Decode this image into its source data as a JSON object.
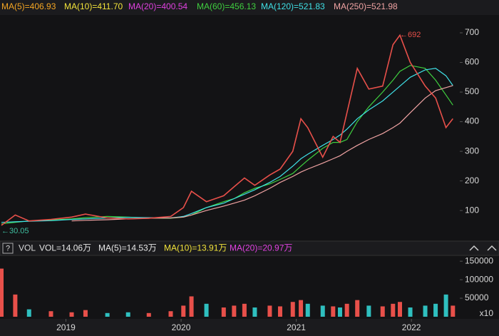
{
  "chart_data": [
    {
      "type": "line",
      "legend": [
        {
          "label": "MA(5)=406.93",
          "color": "#f5a623"
        },
        {
          "label": "MA(10)=411.70",
          "color": "#f2e33a"
        },
        {
          "label": "MA(20)=400.54",
          "color": "#e041e0"
        },
        {
          "label": "MA(60)=456.13",
          "color": "#3fcf3f"
        },
        {
          "label": "MA(120)=521.83",
          "color": "#3fe0e6"
        },
        {
          "label": "MA(250)=521.98",
          "color": "#f0a3a3"
        }
      ],
      "x": [
        2018.44,
        2018.56,
        2018.68,
        2018.87,
        2019.05,
        2019.17,
        2019.36,
        2019.54,
        2019.72,
        2019.91,
        2020.02,
        2020.09,
        2020.22,
        2020.37,
        2020.46,
        2020.55,
        2020.64,
        2020.77,
        2020.86,
        2020.97,
        2021.04,
        2021.1,
        2021.23,
        2021.32,
        2021.38,
        2021.44,
        2021.53,
        2021.63,
        2021.75,
        2021.84,
        2021.9,
        2021.99,
        2022.12,
        2022.21,
        2022.3,
        2022.36
      ],
      "values": [
        50,
        85,
        65,
        70,
        78,
        88,
        75,
        72,
        74,
        80,
        110,
        165,
        130,
        150,
        180,
        210,
        185,
        220,
        240,
        300,
        410,
        380,
        280,
        350,
        330,
        430,
        580,
        510,
        520,
        660,
        692,
        600,
        520,
        480,
        380,
        410
      ],
      "color": "#e8504a",
      "series": [
        {
          "color": "#3fcf3f",
          "values": [
            55,
            60,
            65,
            68,
            72,
            76,
            80,
            78,
            74,
            74,
            78,
            85,
            110,
            130,
            140,
            160,
            175,
            190,
            205,
            225,
            250,
            270,
            310,
            330,
            330,
            340,
            400,
            450,
            500,
            540,
            570,
            590,
            580,
            540,
            490,
            456
          ]
        },
        {
          "color": "#3fe0e6",
          "values": [
            60,
            62,
            64,
            66,
            70,
            72,
            75,
            77,
            76,
            75,
            80,
            90,
            110,
            125,
            140,
            155,
            170,
            195,
            215,
            250,
            275,
            290,
            320,
            340,
            355,
            375,
            410,
            440,
            470,
            500,
            520,
            550,
            575,
            580,
            555,
            522
          ]
        },
        {
          "color": "#f0a3a3",
          "values": [
            null,
            null,
            null,
            null,
            65,
            67,
            69,
            72,
            74,
            75,
            78,
            85,
            100,
            115,
            125,
            135,
            150,
            175,
            195,
            215,
            230,
            240,
            260,
            275,
            285,
            300,
            320,
            340,
            360,
            380,
            395,
            430,
            480,
            505,
            515,
            522
          ]
        }
      ],
      "xlim": [
        2018.44,
        2022.42
      ],
      "ylim": [
        4,
        753
      ],
      "yticks": [
        100,
        200,
        300,
        400,
        500,
        600,
        700
      ],
      "annotations": [
        {
          "text": "←692",
          "x": 2021.9,
          "y": 692,
          "color": "#e8504a"
        },
        {
          "text": "←30.05",
          "x": 2018.44,
          "y": 30.05,
          "color": "#3fbfa0"
        }
      ]
    },
    {
      "type": "bar",
      "title": "VOL",
      "legend": [
        {
          "label": "VOL=14.06万",
          "color": "#e6e6e6"
        },
        {
          "label": "MA(5)=14.53万",
          "color": "#e6e6e6"
        },
        {
          "label": "MA(10)=13.91万",
          "color": "#f2e33a"
        },
        {
          "label": "MA(20)=20.97万",
          "color": "#e041e0"
        }
      ],
      "x": [
        2018.44,
        2018.56,
        2018.68,
        2018.87,
        2019.05,
        2019.17,
        2019.36,
        2019.54,
        2019.72,
        2019.91,
        2020.02,
        2020.09,
        2020.22,
        2020.37,
        2020.46,
        2020.55,
        2020.64,
        2020.77,
        2020.86,
        2020.97,
        2021.04,
        2021.1,
        2021.23,
        2021.32,
        2021.38,
        2021.44,
        2021.53,
        2021.63,
        2021.75,
        2021.84,
        2021.9,
        2021.99,
        2022.12,
        2022.21,
        2022.3,
        2022.36
      ],
      "values": [
        130000,
        60000,
        20000,
        15000,
        12000,
        18000,
        10000,
        12000,
        10000,
        15000,
        30000,
        55000,
        35000,
        25000,
        30000,
        35000,
        25000,
        30000,
        28000,
        40000,
        45000,
        35000,
        30000,
        28000,
        25000,
        35000,
        45000,
        30000,
        28000,
        35000,
        40000,
        25000,
        30000,
        35000,
        60000,
        30000
      ],
      "up_color": "#e8504a",
      "down_color": "#2fbfbf",
      "xlim": [
        2018.44,
        2022.42
      ],
      "xticks": [
        2019,
        2020,
        2021,
        2022
      ],
      "ylim": [
        0,
        158000
      ],
      "yticks": [
        50000,
        100000,
        150000
      ],
      "unit_label": "x10"
    }
  ]
}
